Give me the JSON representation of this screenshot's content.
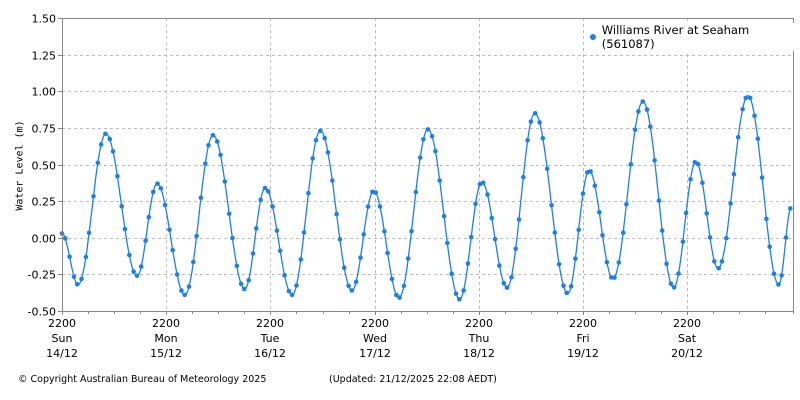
{
  "chart_data": {
    "type": "line",
    "title": "",
    "xlabel": "",
    "ylabel": "Water Level (m)",
    "ylim": [
      -0.5,
      1.5
    ],
    "yticks": [
      "1.50",
      "1.25",
      "1.00",
      "0.75",
      "0.50",
      "0.25",
      "0.00",
      "-0.25",
      "-0.50"
    ],
    "ytick_values": [
      1.5,
      1.25,
      1.0,
      0.75,
      0.5,
      0.25,
      0.0,
      -0.25,
      -0.5
    ],
    "xticks": [
      {
        "time": "2200",
        "day": "Sun",
        "date": "14/12"
      },
      {
        "time": "2200",
        "day": "Mon",
        "date": "15/12"
      },
      {
        "time": "2200",
        "day": "Tue",
        "date": "16/12"
      },
      {
        "time": "2200",
        "day": "Wed",
        "date": "17/12"
      },
      {
        "time": "2200",
        "day": "Thu",
        "date": "18/12"
      },
      {
        "time": "2200",
        "day": "Fri",
        "date": "19/12"
      },
      {
        "time": "2200",
        "day": "Sat",
        "date": "20/12"
      }
    ],
    "x_range_hours": [
      0,
      168
    ],
    "x_unit": "hours since 2200 Sun 14/12",
    "grid": true,
    "legend_position": "top-right",
    "series": [
      {
        "name": "Williams River at Seaham (561087)",
        "color": "#1f7fe5",
        "marker": "circle",
        "extrema_hours": [
          0,
          3.7,
          10.1,
          17.3,
          21.9,
          28.3,
          34.8,
          42.1,
          46.8,
          53.0,
          59.5,
          66.8,
          71.8,
          77.6,
          84.3,
          91.6,
          96.7,
          102.5,
          108.9,
          116.5,
          121.4,
          126.9,
          133.8,
          140.9,
          146.0,
          151.1,
          158.0,
          165.1,
          168
        ],
        "extrema_values": [
          0.03,
          -0.32,
          0.71,
          -0.26,
          0.37,
          -0.39,
          0.7,
          -0.35,
          0.34,
          -0.39,
          0.73,
          -0.36,
          0.32,
          -0.41,
          0.74,
          -0.42,
          0.38,
          -0.34,
          0.85,
          -0.38,
          0.46,
          -0.28,
          0.93,
          -0.34,
          0.52,
          -0.21,
          0.97,
          -0.32,
          0.21
        ]
      }
    ]
  },
  "legend": {
    "label": "Williams River at Seaham (561087)"
  },
  "axis": {
    "ylabel": "Water Level (m)"
  },
  "footer": {
    "copyright": "© Copyright Australian Bureau of Meteorology 2025",
    "updated": "(Updated: 21/12/2025 22:08 AEDT)"
  },
  "colors": {
    "series": "#1f7fe5",
    "grid": "#bbbbbb",
    "axis": "#888888"
  }
}
